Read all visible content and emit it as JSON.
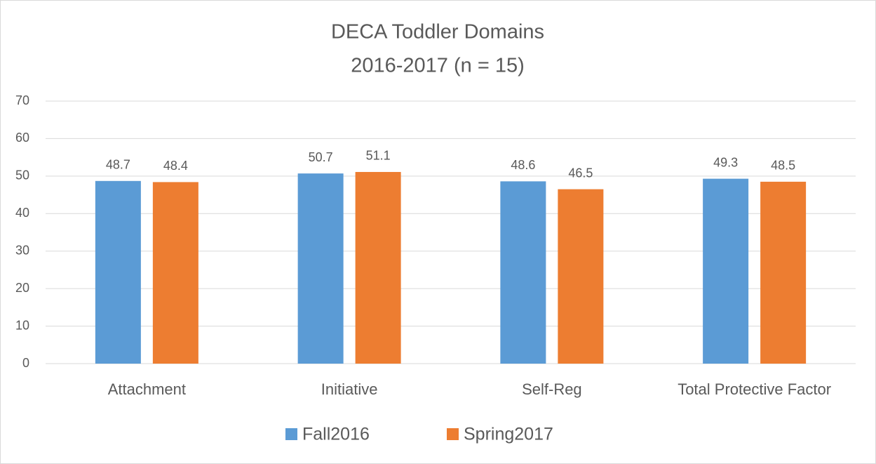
{
  "chart_data": {
    "type": "bar",
    "title": "DECA Toddler Domains",
    "subtitle": "2016-2017 (n = 15)",
    "categories": [
      "Attachment",
      "Initiative",
      "Self-Reg",
      "Total Protective Factor"
    ],
    "series": [
      {
        "name": "Fall2016",
        "color": "#5b9bd5",
        "values": [
          48.7,
          50.7,
          48.6,
          49.3
        ]
      },
      {
        "name": "Spring2017",
        "color": "#ed7d31",
        "values": [
          48.4,
          51.1,
          46.5,
          48.5
        ]
      }
    ],
    "ylim": [
      0,
      70
    ],
    "yticks": [
      0,
      10,
      20,
      30,
      40,
      50,
      60,
      70
    ],
    "grid": true,
    "legend": "bottom"
  }
}
